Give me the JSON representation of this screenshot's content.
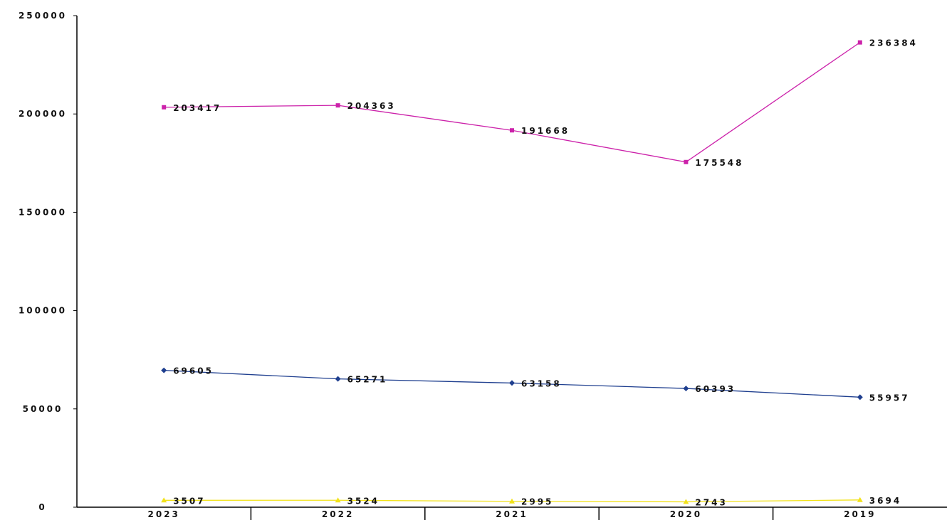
{
  "chart_data": {
    "type": "line",
    "title": "",
    "xlabel": "",
    "ylabel": "",
    "categories": [
      "2023",
      "2022",
      "2021",
      "2020",
      "2019"
    ],
    "ylim": [
      0,
      250000
    ],
    "yticks": [
      0,
      50000,
      100000,
      150000,
      200000,
      250000
    ],
    "ytick_labels": [
      "0",
      "50000",
      "100000",
      "150000",
      "200000",
      "250000"
    ],
    "grid": false,
    "legend": "none",
    "series": [
      {
        "values": [
          203417,
          204363,
          191668,
          175548,
          236384
        ],
        "labels": [
          "203417",
          "204363",
          "191668",
          "175548",
          "236384"
        ],
        "color": "#cc22aa",
        "marker": "square"
      },
      {
        "values": [
          69605,
          65271,
          63158,
          60393,
          55957
        ],
        "labels": [
          "69605",
          "65271",
          "63158",
          "60393",
          "55957"
        ],
        "color": "#1f3f8f",
        "marker": "diamond"
      },
      {
        "values": [
          3507,
          3524,
          2995,
          2743,
          3694
        ],
        "labels": [
          "3507",
          "3524",
          "2995",
          "2743",
          "3694"
        ],
        "color": "#f2e21a",
        "marker": "triangle"
      }
    ]
  }
}
